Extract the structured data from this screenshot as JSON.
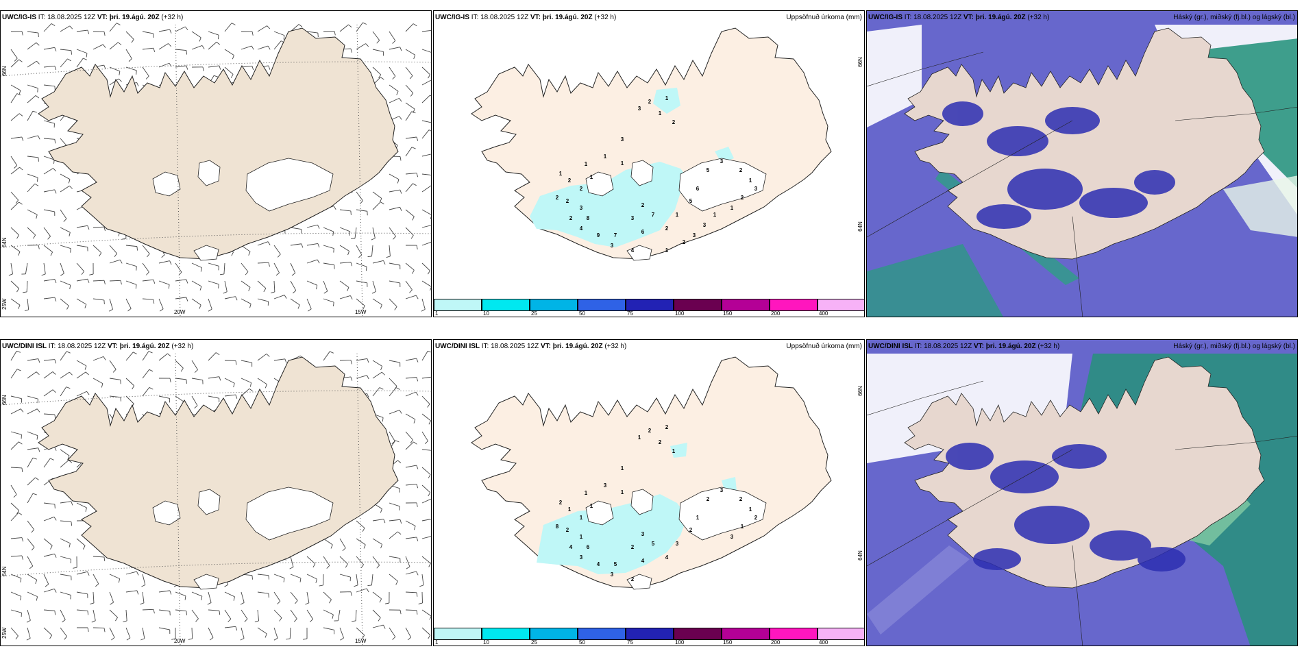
{
  "rows": [
    {
      "model": "UWC/IG-IS",
      "it_prefix": "IT:",
      "it_value": "18.08.2025 12Z",
      "vt_prefix": "VT:",
      "vt_value": "þri. 19.ágú. 20Z",
      "lead": "(+32 h)"
    },
    {
      "model": "UWC/DINI ISL",
      "it_prefix": "IT:",
      "it_value": "18.08.2025 12Z",
      "vt_prefix": "VT:",
      "vt_value": "þri. 19.ágú. 20Z",
      "lead": "(+32 h)"
    }
  ],
  "panel_titles": {
    "precip": "Uppsöfnuð úrkoma (mm)",
    "clouds": "Háský (gr.), miðský (fj.bl.) og lágský (bl.)"
  },
  "grid_labels": {
    "lat_66": "66N",
    "lat_64": "64N",
    "lon_25": "25W",
    "lon_20": "20W",
    "lon_15": "15W"
  },
  "precip_colorbar": {
    "colors": [
      "#bff7f7",
      "#00e8f0",
      "#00b4e6",
      "#2f62e6",
      "#2222b4",
      "#6a0050",
      "#b40096",
      "#ff16be",
      "#f7b2f7"
    ],
    "tick_labels": [
      "1",
      "10",
      "25",
      "50",
      "75",
      "100",
      "150",
      "200",
      "400"
    ]
  },
  "colors": {
    "land": "#efe3d3",
    "land_precip": "#fcefe3",
    "precip_light": "#bff7f7",
    "low_cloud": "#6767cc",
    "mid_cloud": "#2d2fb2",
    "high_cloud": "#24a98a"
  },
  "precip_labels_top": [
    "2",
    "1",
    "3",
    "1",
    "2",
    "3",
    "1",
    "1",
    "1",
    "1",
    "2",
    "1",
    "2",
    "2",
    "3",
    "2",
    "3",
    "7",
    "6",
    "7",
    "9",
    "8",
    "2",
    "2",
    "4",
    "3",
    "4",
    "2",
    "1",
    "5",
    "6",
    "5",
    "3",
    "2",
    "1",
    "3",
    "2",
    "1",
    "1",
    "3",
    "3",
    "2",
    "1"
  ],
  "precip_labels_bottom": [
    "2",
    "2",
    "1",
    "2",
    "1",
    "1",
    "3",
    "1",
    "1",
    "1",
    "1",
    "2",
    "1",
    "2",
    "1",
    "3",
    "2",
    "5",
    "4",
    "5",
    "4",
    "6",
    "8",
    "4",
    "3",
    "3",
    "2",
    "4",
    "3",
    "2",
    "1",
    "2",
    "3",
    "2",
    "1",
    "2",
    "1",
    "3"
  ]
}
